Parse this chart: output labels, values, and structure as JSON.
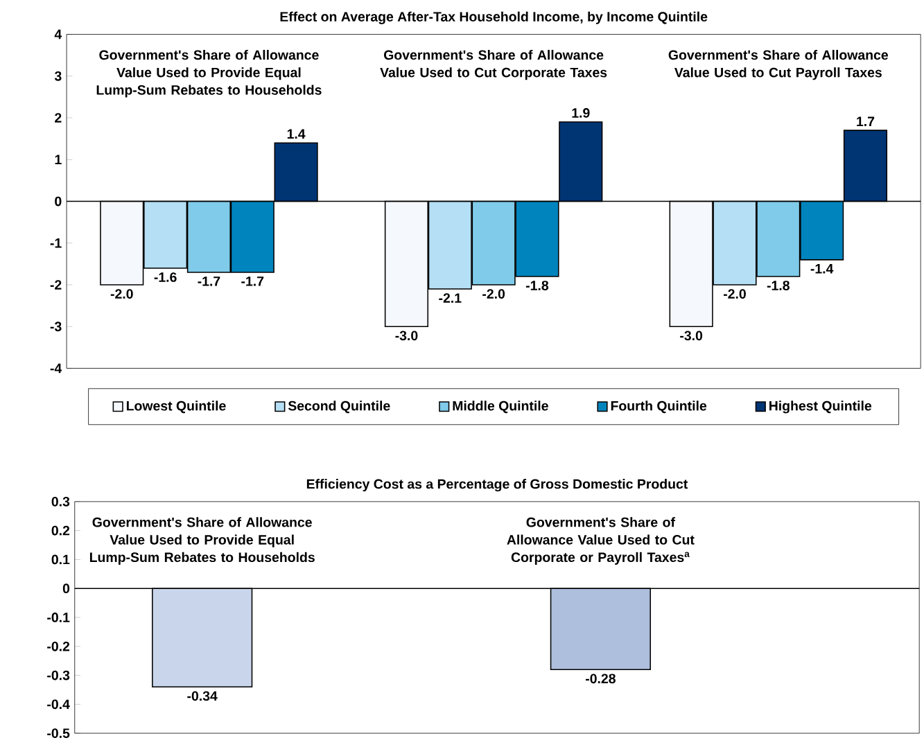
{
  "chart_data": [
    {
      "type": "bar",
      "title": "Effect on Average After-Tax Household Income, by Income Quintile",
      "categories": [
        "Government's Share of Allowance Value Used to Provide Equal Lump-Sum Rebates to Households",
        "Government's Share of Allowance Value Used to Cut Corporate Taxes",
        "Government's Share of Allowance Value Used to Cut Payroll Taxes"
      ],
      "series": [
        {
          "name": "Lowest Quintile",
          "color": "#f5f8fc",
          "values": [
            -2.0,
            -3.0,
            -3.0
          ],
          "value_labels": [
            "-2.0",
            "-3.0",
            "-3.0"
          ]
        },
        {
          "name": "Second Quintile",
          "color": "#b5dff4",
          "values": [
            -1.6,
            -2.1,
            -2.0
          ],
          "value_labels": [
            "-1.6",
            "-2.1",
            "-2.0"
          ]
        },
        {
          "name": "Middle Quintile",
          "color": "#7fcbe9",
          "values": [
            -1.7,
            -2.0,
            -1.8
          ],
          "value_labels": [
            "-1.7",
            "-2.0",
            "-1.8"
          ]
        },
        {
          "name": "Fourth Quintile",
          "color": "#0084bd",
          "values": [
            -1.7,
            -1.8,
            -1.4
          ],
          "value_labels": [
            "-1.7",
            "-1.8",
            "-1.4"
          ]
        },
        {
          "name": "Highest Quintile",
          "color": "#003574",
          "values": [
            1.4,
            1.9,
            1.7
          ],
          "value_labels": [
            "1.4",
            "1.9",
            "1.7"
          ]
        }
      ],
      "ylim": [
        -4,
        4
      ],
      "yticks": [
        -4,
        -3,
        -2,
        -1,
        0,
        1,
        2,
        3,
        4
      ],
      "legend": "bottom"
    },
    {
      "type": "bar",
      "title": "Efficiency Cost as a Percentage of Gross Domestic Product",
      "categories": [
        "Government's Share of Allowance Value Used to Provide Equal Lump-Sum Rebates to Households",
        "Government's Share of Allowance Value Used to Cut Corporate or Payroll Taxes$^{a}$"
      ],
      "values": [
        -0.34,
        -0.28
      ],
      "value_labels": [
        "-0.34",
        "-0.28"
      ],
      "colors": [
        "#c8d5ea",
        "#aebfdd"
      ],
      "ylim": [
        -0.5,
        0.3
      ],
      "yticks": [
        -0.5,
        -0.4,
        -0.3,
        -0.2,
        -0.1,
        0,
        0.1,
        0.2,
        0.3
      ]
    }
  ]
}
